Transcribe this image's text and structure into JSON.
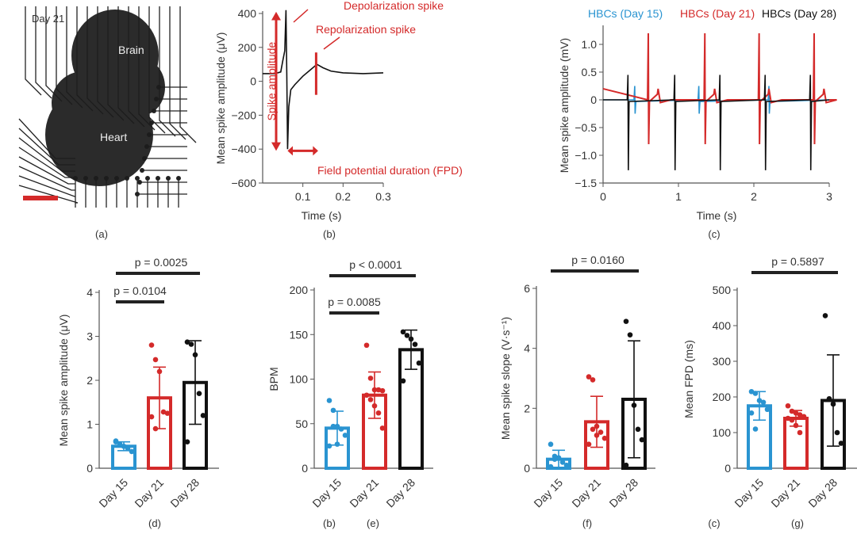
{
  "colors": {
    "day15": "#2a94d1",
    "day21": "#d42a2a",
    "day28": "#111111",
    "annot": "#d42a2a"
  },
  "panel_a": {
    "caption": "(a)",
    "day_label": "Day 21",
    "brain_label": "Brain",
    "heart_label": "Heart"
  },
  "chart_data": [
    {
      "id": "b",
      "type": "line",
      "caption": "(b)",
      "xlabel": "Time (s)",
      "ylabel": "Mean spike amplitude (μV)",
      "xlim": [
        0,
        0.3
      ],
      "ylim": [
        -600,
        400
      ],
      "xticks": [
        "0.1",
        "0.2",
        "0.3"
      ],
      "xtick_values": [
        0.1,
        0.2,
        0.3
      ],
      "yticks": [
        "400",
        "200",
        "0",
        "−200",
        "−400",
        "−600"
      ],
      "ytick_values": [
        400,
        200,
        0,
        -200,
        -400,
        -600
      ],
      "x": [
        0,
        0.03,
        0.045,
        0.05,
        0.055,
        0.058,
        0.06,
        0.062,
        0.065,
        0.07,
        0.08,
        0.1,
        0.12,
        0.135,
        0.15,
        0.17,
        0.2,
        0.25,
        0.3
      ],
      "y": [
        45,
        45,
        55,
        120,
        180,
        420,
        50,
        -400,
        -150,
        -50,
        -20,
        30,
        70,
        100,
        80,
        60,
        50,
        45,
        50
      ],
      "annotations": {
        "depolarization": "Depolarization spike",
        "repolarization": "Repolarization spike",
        "amplitude": "Spike amplitude",
        "fpd": "Field potential duration (FPD)"
      }
    },
    {
      "id": "c",
      "type": "line",
      "caption": "(c)",
      "xlabel": "Time (s)",
      "ylabel": "Mean spike amplitude (mV)",
      "xlim": [
        0,
        3
      ],
      "ylim": [
        -1.5,
        1.3
      ],
      "xticks": [
        "0",
        "1",
        "2",
        "3"
      ],
      "xtick_values": [
        0,
        1,
        2,
        3
      ],
      "yticks": [
        "1.0",
        "0.5",
        "0",
        "−0.5",
        "−1.0",
        "−1.5"
      ],
      "ytick_values": [
        1,
        0.5,
        0,
        -0.5,
        -1,
        -1.5
      ],
      "series": [
        {
          "name": "HBCs (Day 15)",
          "color_key": "day15",
          "spike_times": [
            0.42,
            1.27,
            2.2
          ],
          "peak": 0.25,
          "trough": -0.25
        },
        {
          "name": "HBCs (Day 21)",
          "color_key": "day21",
          "spike_times": [
            0.6,
            1.35,
            2.07,
            2.8
          ],
          "peak": 1.2,
          "trough": -0.8
        },
        {
          "name": "HBCs (Day 28)",
          "color_key": "day28",
          "spike_times": [
            0.33,
            0.95,
            1.55,
            2.15,
            2.75
          ],
          "peak": 0.45,
          "trough": -1.27
        }
      ]
    },
    {
      "id": "d",
      "type": "bar",
      "caption": "(d)",
      "ylabel": "Mean spike amplitude (μV)",
      "categories": [
        "Day 15",
        "Day 21",
        "Day 28"
      ],
      "ylim": [
        0,
        4
      ],
      "yticks": [
        "0",
        "1",
        "2",
        "3",
        "4"
      ],
      "ytick_values": [
        0,
        1,
        2,
        3,
        4
      ],
      "means": [
        0.5,
        1.6,
        1.95
      ],
      "sd": [
        0.1,
        0.7,
        0.95
      ],
      "points": [
        [
          0.6,
          0.55,
          0.5,
          0.45,
          0.38,
          0.62
        ],
        [
          2.8,
          2.47,
          2.2,
          1.28,
          1.25,
          1.17,
          0.9
        ],
        [
          2.87,
          2.82,
          2.58,
          1.7,
          1.2,
          0.6
        ]
      ],
      "comparisons": [
        {
          "from": 0,
          "to": 1,
          "label": "p = 0.0104"
        },
        {
          "from": 0,
          "to": 2,
          "label": "p = 0.0025"
        }
      ]
    },
    {
      "id": "e",
      "type": "bar",
      "caption": "(e)",
      "ylabel": "BPM",
      "categories": [
        "Day 15",
        "Day 21",
        "Day 28"
      ],
      "ylim": [
        0,
        200
      ],
      "yticks": [
        "0",
        "50",
        "100",
        "150",
        "200"
      ],
      "ytick_values": [
        0,
        50,
        100,
        150,
        200
      ],
      "means": [
        45,
        82,
        133
      ],
      "sd": [
        19,
        26,
        22
      ],
      "points": [
        [
          76,
          65,
          47,
          44,
          37,
          25,
          47,
          27
        ],
        [
          138,
          101,
          88,
          88,
          87,
          82,
          77,
          70,
          62,
          45
        ],
        [
          153,
          149,
          145,
          139,
          118,
          98
        ]
      ],
      "comparisons": [
        {
          "from": 0,
          "to": 1,
          "label": "p = 0.0085"
        },
        {
          "from": 0,
          "to": 2,
          "label": "p < 0.0001"
        }
      ]
    },
    {
      "id": "f",
      "type": "bar",
      "caption": "(f)",
      "ylabel": "Mean spike slope (V·s⁻¹)",
      "categories": [
        "Day 15",
        "Day 21",
        "Day 28"
      ],
      "ylim": [
        0,
        6
      ],
      "yticks": [
        "0",
        "2",
        "4",
        "6"
      ],
      "ytick_values": [
        0,
        2,
        4,
        6
      ],
      "means": [
        0.3,
        1.55,
        2.3
      ],
      "sd": [
        0.3,
        0.85,
        1.95
      ],
      "points": [
        [
          0.8,
          0.4,
          0.35,
          0.2,
          0.1,
          0.05,
          0.3
        ],
        [
          3.05,
          2.95,
          1.4,
          1.2,
          1.0,
          0.8,
          1.3,
          1.1
        ],
        [
          4.9,
          4.45,
          2.1,
          1.3,
          0.95,
          0.1
        ]
      ],
      "comparisons": [
        {
          "from": 0,
          "to": 2,
          "label": "p = 0.0160"
        }
      ]
    },
    {
      "id": "g",
      "type": "bar",
      "caption": "(g)",
      "ylabel": "Mean FPD (ms)",
      "categories": [
        "Day 15",
        "Day 21",
        "Day 28"
      ],
      "ylim": [
        0,
        500
      ],
      "yticks": [
        "0",
        "100",
        "200",
        "300",
        "400",
        "500"
      ],
      "ytick_values": [
        0,
        100,
        200,
        300,
        400,
        500
      ],
      "means": [
        175,
        140,
        190
      ],
      "sd": [
        40,
        22,
        128
      ],
      "points": [
        [
          215,
          210,
          190,
          185,
          165,
          155,
          110
        ],
        [
          175,
          160,
          155,
          150,
          145,
          140,
          135,
          120,
          100
        ],
        [
          428,
          195,
          180,
          100,
          70
        ]
      ],
      "comparisons": [
        {
          "from": 0,
          "to": 2,
          "label": "p = 0.5897"
        }
      ]
    }
  ]
}
